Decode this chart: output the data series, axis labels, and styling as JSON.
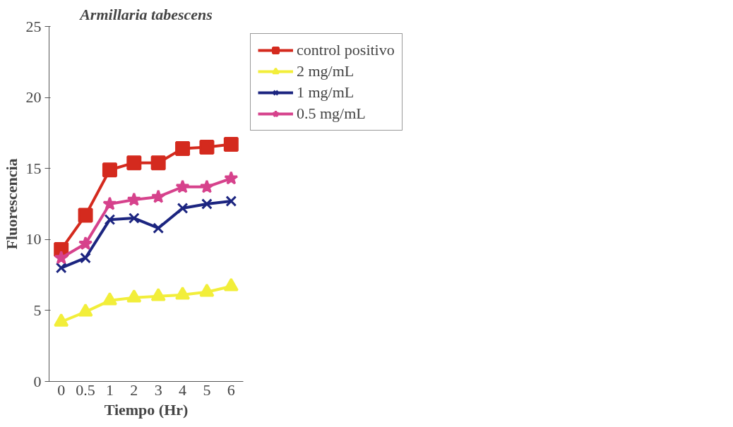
{
  "chart_data": {
    "type": "line",
    "title": "Armillaria tabescens",
    "xlabel": "Tiempo (Hr)",
    "ylabel": "Fluorescencia",
    "categories": [
      "0",
      "0.5",
      "1",
      "2",
      "3",
      "4",
      "5",
      "6"
    ],
    "ylim": [
      0,
      25
    ],
    "yticks": [
      0,
      5,
      10,
      15,
      20,
      25
    ],
    "grid": false,
    "legend": "right",
    "line_style": "solid",
    "series": [
      {
        "name": "control positivo",
        "color": "#d42a1e",
        "marker": "square",
        "values": [
          9.3,
          11.7,
          14.9,
          15.4,
          15.4,
          16.4,
          16.5,
          16.7
        ]
      },
      {
        "name": "2 mg/mL",
        "color": "#f2ee3a",
        "marker": "triangle",
        "values": [
          4.2,
          4.9,
          5.7,
          5.9,
          6.0,
          6.1,
          6.3,
          6.7
        ]
      },
      {
        "name": "1 mg/mL",
        "color": "#1c2580",
        "marker": "cross",
        "values": [
          8.0,
          8.7,
          11.4,
          11.5,
          10.8,
          12.2,
          12.5,
          12.7
        ]
      },
      {
        "name": "0.5 mg/mL",
        "color": "#d6428c",
        "marker": "star",
        "values": [
          8.7,
          9.7,
          12.5,
          12.8,
          13.0,
          13.7,
          13.7,
          14.3
        ]
      }
    ]
  }
}
